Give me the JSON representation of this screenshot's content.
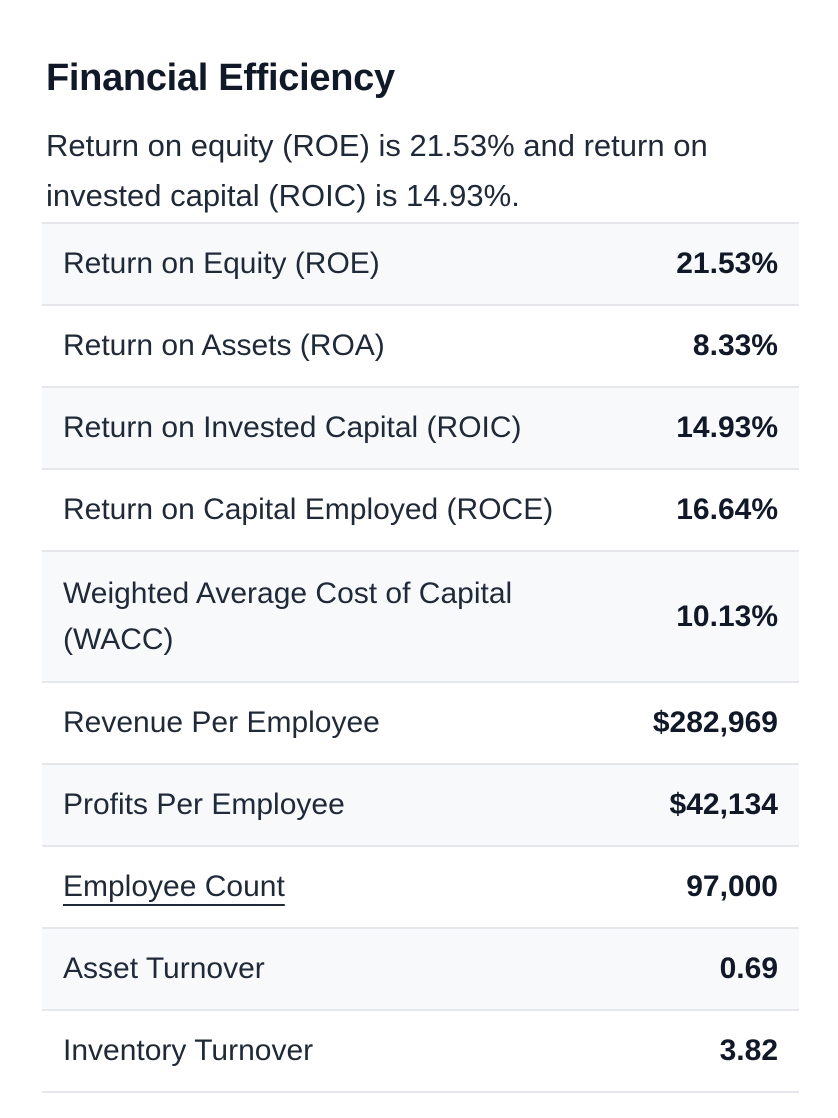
{
  "section": {
    "title": "Financial Efficiency",
    "summary": "Return on equity (ROE) is 21.53% and return on invested capital (ROIC) is 14.93%."
  },
  "metrics": [
    {
      "label": "Return on Equity (ROE)",
      "value": "21.53%"
    },
    {
      "label": "Return on Assets (ROA)",
      "value": "8.33%"
    },
    {
      "label": "Return on Invested Capital (ROIC)",
      "value": "14.93%"
    },
    {
      "label": "Return on Capital Employed (ROCE)",
      "value": "16.64%"
    },
    {
      "label": "Weighted Average Cost of Capital (WACC)",
      "value": "10.13%"
    },
    {
      "label": "Revenue Per Employee",
      "value": "$282,969"
    },
    {
      "label": "Profits Per Employee",
      "value": "$42,134"
    },
    {
      "label": "Employee Count",
      "value": "97,000"
    },
    {
      "label": "Asset Turnover",
      "value": "0.69"
    },
    {
      "label": "Inventory Turnover",
      "value": "3.82"
    }
  ]
}
